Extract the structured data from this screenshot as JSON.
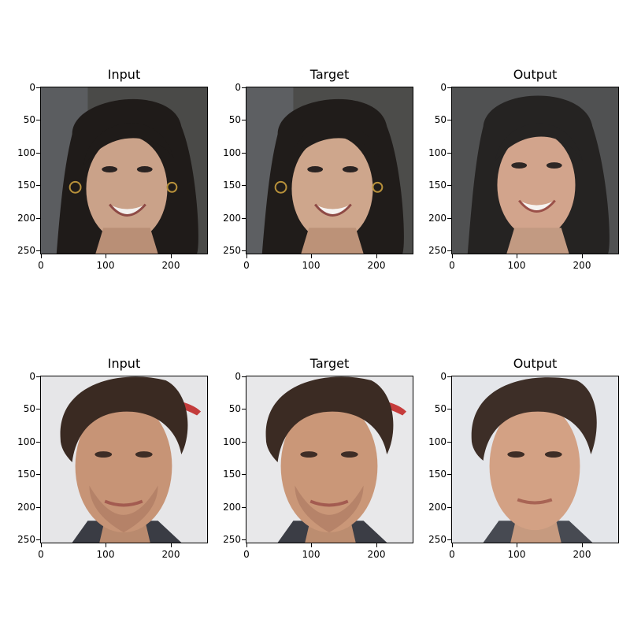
{
  "rows": [
    {
      "panels": [
        {
          "title": "Input",
          "subject": "woman-face"
        },
        {
          "title": "Target",
          "subject": "woman-face"
        },
        {
          "title": "Output",
          "subject": "woman-face-smooth"
        }
      ]
    },
    {
      "panels": [
        {
          "title": "Input",
          "subject": "man-face"
        },
        {
          "title": "Target",
          "subject": "man-face"
        },
        {
          "title": "Output",
          "subject": "man-face-smooth"
        }
      ]
    }
  ],
  "axis": {
    "y_ticks": [
      "0",
      "50",
      "100",
      "150",
      "200",
      "250"
    ],
    "x_ticks": [
      "0",
      "100",
      "200"
    ]
  },
  "colors": {
    "axes": "#000000",
    "background": "#ffffff"
  }
}
